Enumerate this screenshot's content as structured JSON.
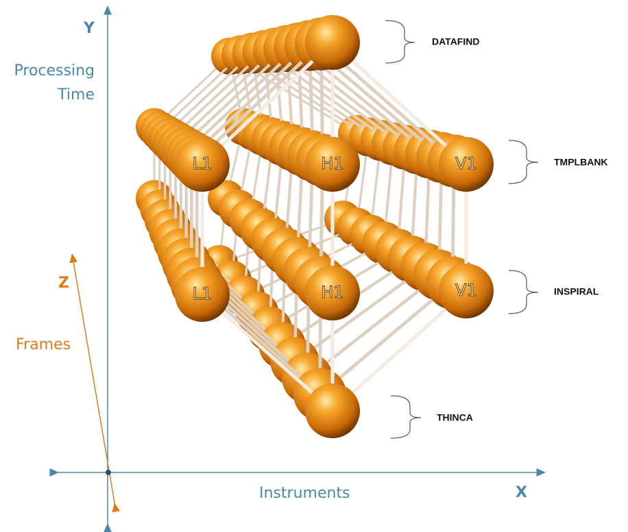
{
  "axes": {
    "y": {
      "letter": "Y",
      "label": [
        "Processing",
        "Time"
      ]
    },
    "z": {
      "letter": "Z",
      "label": "Frames"
    },
    "x": {
      "letter": "X",
      "label": "Instruments"
    }
  },
  "stages": [
    "DATAFIND",
    "TMPLBANK",
    "INSPIRAL",
    "THINCA"
  ],
  "nodes": [
    {
      "label": "L1"
    },
    {
      "label": "H1"
    },
    {
      "label": "V1"
    },
    {
      "label": "L1"
    },
    {
      "label": "H1"
    },
    {
      "label": "V1"
    }
  ]
}
